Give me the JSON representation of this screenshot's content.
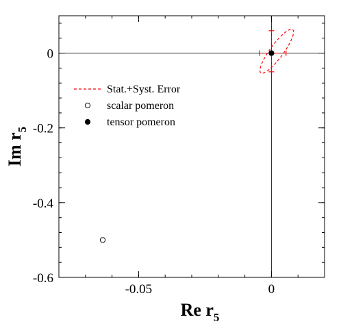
{
  "chart_data": {
    "type": "scatter",
    "title": "",
    "xlabel": {
      "main": "Re r",
      "sub": "5"
    },
    "ylabel": {
      "main": "Im r",
      "sub": "5"
    },
    "xlim": [
      -0.08,
      0.02
    ],
    "ylim": [
      -0.6,
      0.1
    ],
    "x_ticks": [
      {
        "value": -0.05,
        "label": "-0.05"
      },
      {
        "value": 0,
        "label": "0"
      }
    ],
    "y_ticks": [
      {
        "value": 0,
        "label": "0"
      },
      {
        "value": -0.2,
        "label": "-0.2"
      },
      {
        "value": -0.4,
        "label": "-0.4"
      },
      {
        "value": -0.6,
        "label": "-0.6"
      }
    ],
    "x_minor_step": 0.01,
    "y_minor_step": 0.04,
    "reference_lines": {
      "x": 0,
      "y": 0
    },
    "grid": false,
    "legend_position": "center-left",
    "legend": [
      {
        "label": "Stat.+Syst. Error",
        "marker": "dashed-line",
        "color": "#ff0000"
      },
      {
        "label": "scalar pomeron",
        "marker": "open-circle",
        "color": "#000000"
      },
      {
        "label": "tensor pomeron",
        "marker": "filled-circle",
        "color": "#000000"
      }
    ],
    "series": [
      {
        "name": "scalar pomeron",
        "marker": "open-circle",
        "points": [
          {
            "x": -0.0635,
            "y": -0.5
          }
        ]
      },
      {
        "name": "tensor pomeron",
        "marker": "filled-circle",
        "points": [
          {
            "x": 0.0,
            "y": 0.0
          }
        ],
        "error_x": [
          -0.0045,
          0.0055
        ],
        "error_y": [
          -0.05,
          0.06
        ],
        "error_color": "#ff0000",
        "ellipse": {
          "center": [
            0.002,
            0.005
          ],
          "semi_major_x": 0.006,
          "semi_major_y": 0.058,
          "semi_minor": 0.0025,
          "color": "#ff0000",
          "style": "dashed"
        }
      }
    ]
  }
}
